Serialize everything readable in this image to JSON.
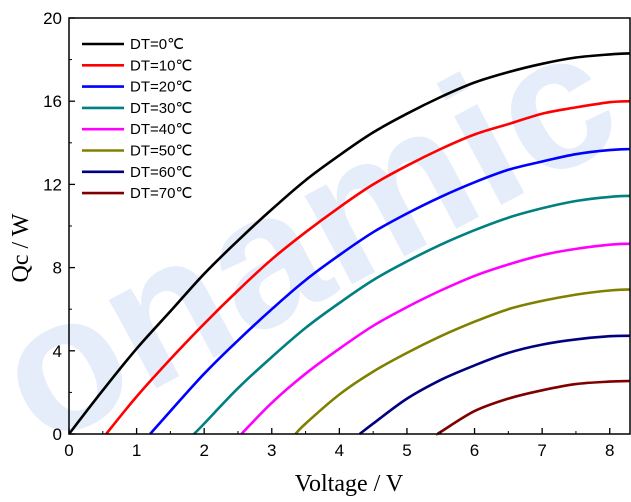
{
  "watermark": "onamic",
  "chart_data": {
    "type": "line",
    "xlabel": "Voltage / V",
    "ylabel": "Qc / W",
    "xlim": [
      0,
      8.3
    ],
    "ylim": [
      0,
      20
    ],
    "xticks": [
      0,
      1,
      2,
      3,
      4,
      5,
      6,
      7,
      8
    ],
    "yticks": [
      0,
      4,
      8,
      12,
      16,
      20
    ],
    "grid": false,
    "legend_position": "top-left",
    "series": [
      {
        "name": "DT=0℃",
        "color": "#000000",
        "x": [
          0.0,
          0.5,
          1.0,
          1.5,
          2.0,
          2.5,
          3.0,
          3.5,
          4.0,
          4.5,
          5.0,
          5.5,
          6.0,
          6.5,
          7.0,
          7.5,
          8.0,
          8.3
        ],
        "y": [
          0.0,
          2.1,
          4.1,
          5.9,
          7.7,
          9.3,
          10.8,
          12.2,
          13.4,
          14.5,
          15.4,
          16.2,
          16.9,
          17.4,
          17.8,
          18.1,
          18.25,
          18.3
        ]
      },
      {
        "name": "DT=10℃",
        "color": "#ff0000",
        "x": [
          0.55,
          1.0,
          1.5,
          2.0,
          2.5,
          3.0,
          3.5,
          4.0,
          4.5,
          5.0,
          5.5,
          6.0,
          6.5,
          7.0,
          7.5,
          8.0,
          8.3
        ],
        "y": [
          0.0,
          1.8,
          3.6,
          5.3,
          6.9,
          8.4,
          9.7,
          10.9,
          12.0,
          12.9,
          13.7,
          14.4,
          14.9,
          15.4,
          15.7,
          15.95,
          16.0
        ]
      },
      {
        "name": "DT=20℃",
        "color": "#0000ff",
        "x": [
          1.2,
          1.5,
          2.0,
          2.5,
          3.0,
          3.5,
          4.0,
          4.5,
          5.0,
          5.5,
          6.0,
          6.5,
          7.0,
          7.5,
          8.0,
          8.3
        ],
        "y": [
          0.0,
          1.1,
          2.9,
          4.5,
          6.0,
          7.4,
          8.6,
          9.7,
          10.6,
          11.4,
          12.1,
          12.7,
          13.1,
          13.45,
          13.65,
          13.7
        ]
      },
      {
        "name": "DT=30℃",
        "color": "#008080",
        "x": [
          1.85,
          2.0,
          2.5,
          3.0,
          3.5,
          4.0,
          4.5,
          5.0,
          5.5,
          6.0,
          6.5,
          7.0,
          7.5,
          8.0,
          8.3
        ],
        "y": [
          0.0,
          0.5,
          2.2,
          3.7,
          5.1,
          6.3,
          7.4,
          8.3,
          9.1,
          9.8,
          10.4,
          10.85,
          11.2,
          11.4,
          11.45
        ]
      },
      {
        "name": "DT=40℃",
        "color": "#ff00ff",
        "x": [
          2.55,
          3.0,
          3.5,
          4.0,
          4.5,
          5.0,
          5.5,
          6.0,
          6.5,
          7.0,
          7.5,
          8.0,
          8.3
        ],
        "y": [
          0.0,
          1.5,
          2.9,
          4.1,
          5.2,
          6.1,
          6.9,
          7.6,
          8.15,
          8.6,
          8.9,
          9.1,
          9.15
        ]
      },
      {
        "name": "DT=50℃",
        "color": "#808000",
        "x": [
          3.35,
          3.5,
          4.0,
          4.5,
          5.0,
          5.5,
          6.0,
          6.5,
          7.0,
          7.5,
          8.0,
          8.3
        ],
        "y": [
          0.0,
          0.5,
          1.9,
          3.0,
          3.9,
          4.7,
          5.4,
          6.0,
          6.4,
          6.7,
          6.9,
          6.95
        ]
      },
      {
        "name": "DT=60℃",
        "color": "#000080",
        "x": [
          4.3,
          4.5,
          5.0,
          5.5,
          6.0,
          6.5,
          7.0,
          7.5,
          8.0,
          8.3
        ],
        "y": [
          0.0,
          0.5,
          1.7,
          2.6,
          3.3,
          3.9,
          4.3,
          4.55,
          4.7,
          4.72
        ]
      },
      {
        "name": "DT=70℃",
        "color": "#800000",
        "x": [
          5.45,
          5.5,
          6.0,
          6.5,
          7.0,
          7.5,
          8.0,
          8.3
        ],
        "y": [
          0.0,
          0.1,
          1.1,
          1.7,
          2.1,
          2.4,
          2.52,
          2.55
        ]
      }
    ]
  }
}
